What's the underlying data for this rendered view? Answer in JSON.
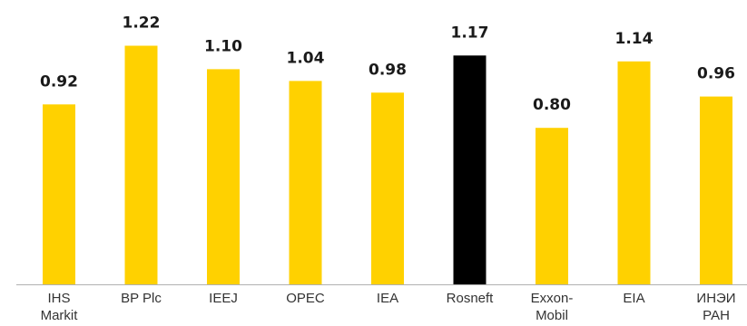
{
  "chart_data": {
    "type": "bar",
    "title": "",
    "xlabel": "",
    "ylabel": "",
    "ylim": [
      0,
      1.3
    ],
    "grid": false,
    "categories": [
      [
        "IHS",
        "Markit"
      ],
      [
        "BP Plc"
      ],
      [
        "IEEJ"
      ],
      [
        "OPEC"
      ],
      [
        "IEA"
      ],
      [
        "Rosneft"
      ],
      [
        "Exxon-",
        "Mobil"
      ],
      [
        "EIA"
      ],
      [
        "ИНЭИ",
        "РАН"
      ]
    ],
    "values": [
      0.92,
      1.22,
      1.1,
      1.04,
      0.98,
      1.17,
      0.8,
      1.14,
      0.96
    ],
    "value_labels": [
      "0.92",
      "1.22",
      "1.10",
      "1.04",
      "0.98",
      "1.17",
      "0.80",
      "1.14",
      "0.96"
    ],
    "colors": {
      "default": "#FFD100",
      "highlight": "#000000",
      "axis": "#b0b0b0"
    },
    "highlight_category": "Rosneft"
  }
}
